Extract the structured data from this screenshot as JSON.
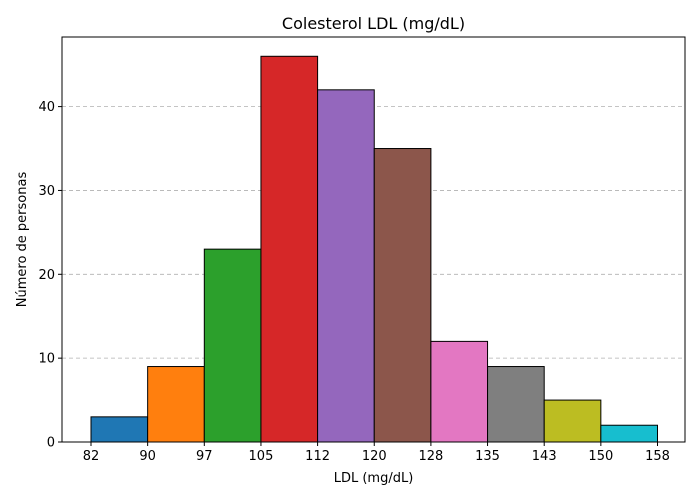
{
  "chart_data": {
    "type": "bar",
    "title": "Colesterol LDL (mg/dL)",
    "xlabel": "LDL (mg/dL)",
    "ylabel": "Número de personas",
    "bin_edges": [
      82,
      90,
      97,
      105,
      112,
      120,
      128,
      135,
      143,
      150,
      158
    ],
    "x_tick_labels": [
      "82",
      "90",
      "97",
      "105",
      "112",
      "120",
      "128",
      "135",
      "143",
      "150",
      "158"
    ],
    "values": [
      3,
      9,
      23,
      46,
      42,
      35,
      12,
      9,
      5,
      2
    ],
    "bar_colors": [
      "#1f77b4",
      "#ff7f0e",
      "#2ca02c",
      "#d62728",
      "#9467bd",
      "#8c564b",
      "#e377c2",
      "#7f7f7f",
      "#bcbd22",
      "#17becf"
    ],
    "y_ticks": [
      0,
      10,
      20,
      30,
      40
    ],
    "ylim": [
      0,
      48.3
    ],
    "grid": "y-dashed"
  }
}
